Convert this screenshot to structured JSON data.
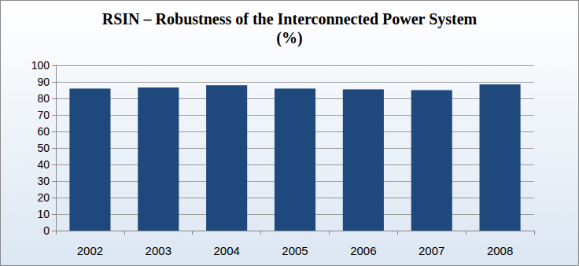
{
  "chart_data": {
    "type": "bar",
    "title": "RSIN – Robustness of the Interconnected Power System\n(%)",
    "categories": [
      "2002",
      "2003",
      "2004",
      "2005",
      "2006",
      "2007",
      "2008"
    ],
    "values": [
      86,
      86.5,
      88,
      86,
      85.5,
      85,
      88.5
    ],
    "color": "#1f497d",
    "ylim": [
      0,
      100
    ],
    "yticks": [
      0,
      10,
      20,
      30,
      40,
      50,
      60,
      70,
      80,
      90,
      100
    ],
    "grid": true
  }
}
